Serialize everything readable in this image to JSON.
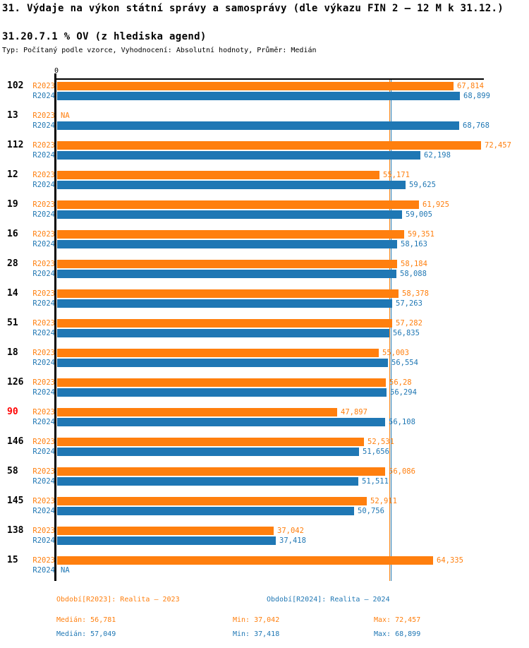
{
  "header": {
    "title": "31. Výdaje na výkon státní správy a samosprávy (dle výkazu FIN 2 – 12 M k 31.12.)",
    "subtitle": "31.20.7.1 % OV (z hlediska agend)",
    "meta": "Typ: Počítaný podle vzorce, Vyhodnocení: Absolutní hodnoty, Průměr: Medián"
  },
  "colors": {
    "r2023": "#ff7f0e",
    "r2024": "#1f77b4",
    "highlight": "#ff0000",
    "axis": "#000000"
  },
  "chart_data": {
    "type": "bar",
    "orientation": "horizontal",
    "title": "31.20.7.1 % OV (z hlediska agend)",
    "series_labels": [
      "R2023",
      "R2024"
    ],
    "zero_tick_label": "0",
    "xlim": [
      0,
      73118
    ],
    "grid": false,
    "legend_position": "bottom",
    "categories": [
      "102",
      "13",
      "112",
      "12",
      "19",
      "16",
      "28",
      "14",
      "51",
      "18",
      "126",
      "90",
      "146",
      "58",
      "145",
      "138",
      "15"
    ],
    "rows": [
      {
        "category": "102",
        "highlight": false,
        "values": [
          67814,
          68899
        ],
        "labels": [
          "67,814",
          "68,899"
        ]
      },
      {
        "category": "13",
        "highlight": false,
        "values": [
          null,
          68768
        ],
        "labels": [
          "NA",
          "68,768"
        ]
      },
      {
        "category": "112",
        "highlight": false,
        "values": [
          72457,
          62198
        ],
        "labels": [
          "72,457",
          "62,198"
        ]
      },
      {
        "category": "12",
        "highlight": false,
        "values": [
          55171,
          59625
        ],
        "labels": [
          "55,171",
          "59,625"
        ]
      },
      {
        "category": "19",
        "highlight": false,
        "values": [
          61925,
          59005
        ],
        "labels": [
          "61,925",
          "59,005"
        ]
      },
      {
        "category": "16",
        "highlight": false,
        "values": [
          59351,
          58163
        ],
        "labels": [
          "59,351",
          "58,163"
        ]
      },
      {
        "category": "28",
        "highlight": false,
        "values": [
          58184,
          58088
        ],
        "labels": [
          "58,184",
          "58,088"
        ]
      },
      {
        "category": "14",
        "highlight": false,
        "values": [
          58378,
          57263
        ],
        "labels": [
          "58,378",
          "57,263"
        ]
      },
      {
        "category": "51",
        "highlight": false,
        "values": [
          57282,
          56835
        ],
        "labels": [
          "57,282",
          "56,835"
        ]
      },
      {
        "category": "18",
        "highlight": false,
        "values": [
          55003,
          56554
        ],
        "labels": [
          "55,003",
          "56,554"
        ]
      },
      {
        "category": "126",
        "highlight": false,
        "values": [
          56280,
          56294
        ],
        "labels": [
          "56,28",
          "56,294"
        ]
      },
      {
        "category": "90",
        "highlight": true,
        "values": [
          47897,
          56108
        ],
        "labels": [
          "47,897",
          "56,108"
        ]
      },
      {
        "category": "146",
        "highlight": false,
        "values": [
          52531,
          51656
        ],
        "labels": [
          "52,531",
          "51,656"
        ]
      },
      {
        "category": "58",
        "highlight": false,
        "values": [
          56086,
          51511
        ],
        "labels": [
          "56,086",
          "51,511"
        ]
      },
      {
        "category": "145",
        "highlight": false,
        "values": [
          52911,
          50756
        ],
        "labels": [
          "52,911",
          "50,756"
        ]
      },
      {
        "category": "138",
        "highlight": false,
        "values": [
          37042,
          37418
        ],
        "labels": [
          "37,042",
          "37,418"
        ]
      },
      {
        "category": "15",
        "highlight": false,
        "values": [
          64335,
          null
        ],
        "labels": [
          "64,335",
          "NA"
        ]
      }
    ],
    "medians": {
      "r2023": 56781,
      "r2024": 57049
    }
  },
  "footer": {
    "legend_r2023": "Období[R2023]: Realita – 2023",
    "legend_r2024": "Období[R2024]: Realita – 2024",
    "stats_r2023": {
      "median": "Medián: 56,781",
      "min": "Min: 37,042",
      "max": "Max: 72,457"
    },
    "stats_r2024": {
      "median": "Medián: 57,049",
      "min": "Min: 37,418",
      "max": "Max: 68,899"
    }
  }
}
